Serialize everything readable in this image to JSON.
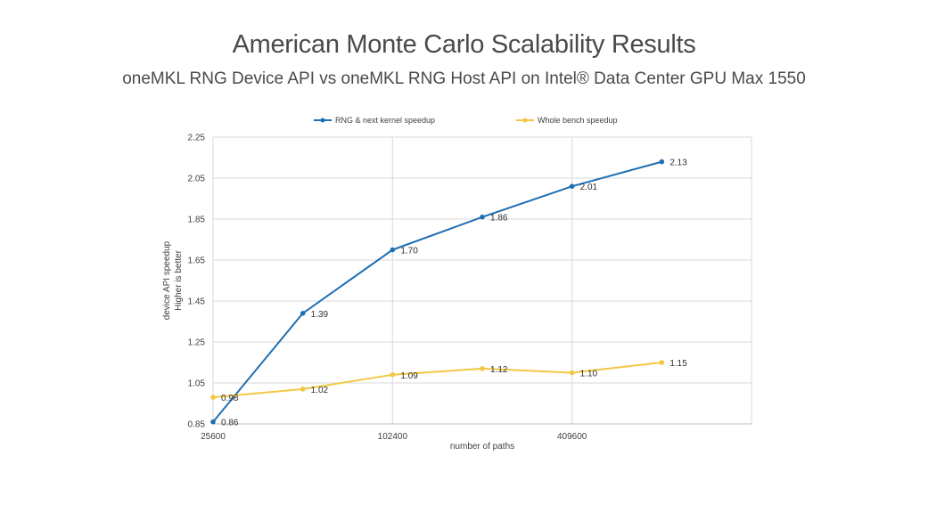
{
  "chart_data": {
    "type": "line",
    "title": "American Monte Carlo Scalability Results",
    "subtitle": "oneMKL RNG Device API vs oneMKL RNG Host API on Intel® Data Center GPU Max 1550",
    "xlabel": "number of paths",
    "ylabel": "device API speedup",
    "ylabel2": "Higher is better",
    "xscale": "log2",
    "x": [
      25600,
      51200,
      102400,
      204800,
      409600,
      819200
    ],
    "xticks": [
      25600,
      102400,
      409600
    ],
    "xtick_labels": [
      "25600",
      "102400",
      "409600"
    ],
    "xlim": [
      25600,
      1638400
    ],
    "ylim": [
      0.85,
      2.25
    ],
    "yticks": [
      0.85,
      1.05,
      1.25,
      1.45,
      1.65,
      1.85,
      2.05,
      2.25
    ],
    "ytick_labels": [
      "0.85",
      "1.05",
      "1.25",
      "1.45",
      "1.65",
      "1.85",
      "2.05",
      "2.25"
    ],
    "grid": true,
    "legend_position": "top",
    "series": [
      {
        "name": "RNG & next kernel speedup",
        "color": "#1f6fb4",
        "values": [
          0.86,
          1.39,
          1.7,
          1.86,
          2.01,
          2.13
        ],
        "labels": [
          "0.86",
          "1.39",
          "1.70",
          "1.86",
          "2.01",
          "2.13"
        ]
      },
      {
        "name": "Whole bench speedup",
        "color": "#f2c744",
        "values": [
          0.98,
          1.02,
          1.09,
          1.12,
          1.1,
          1.15
        ],
        "labels": [
          "0.98",
          "1.02",
          "1.09",
          "1.12",
          "1.10",
          "1.15"
        ]
      }
    ]
  }
}
